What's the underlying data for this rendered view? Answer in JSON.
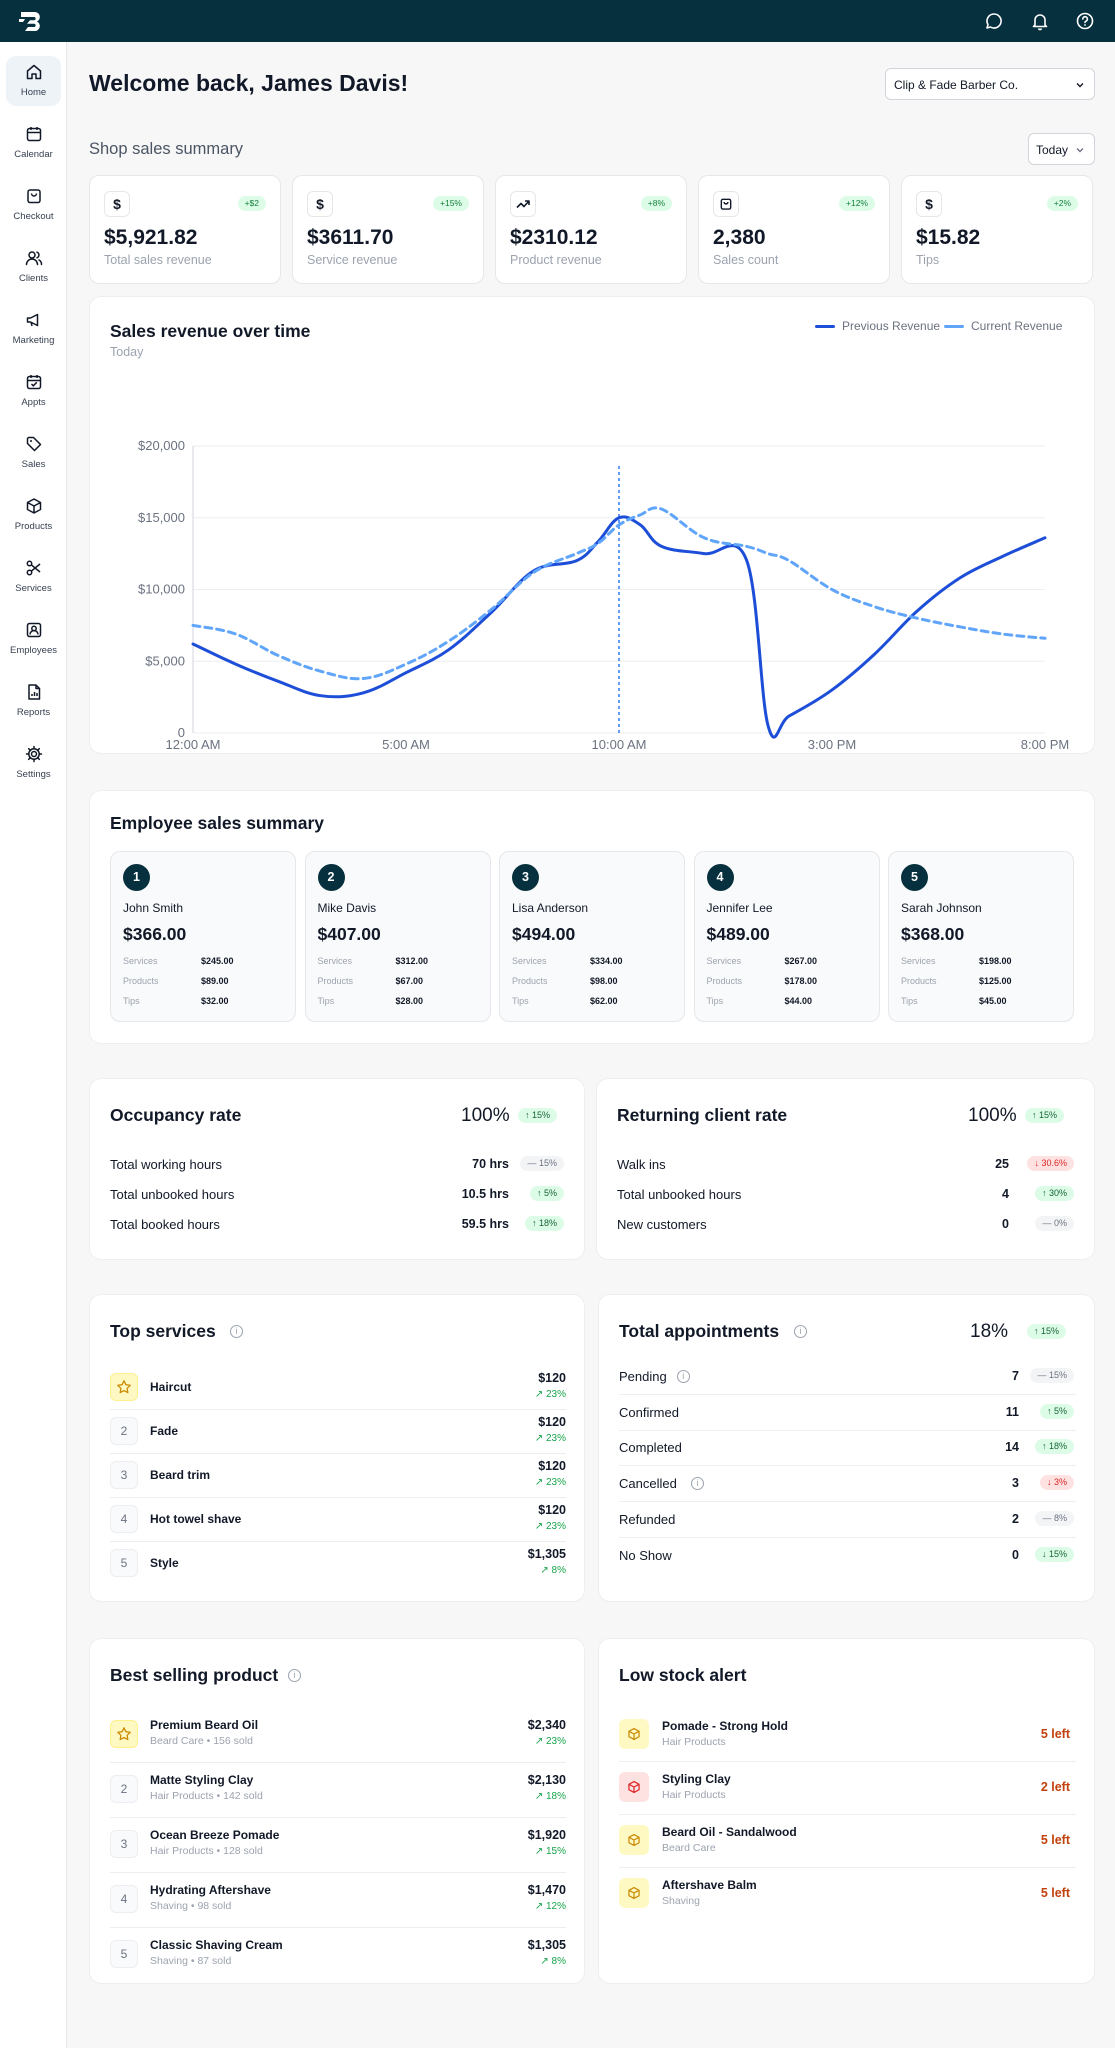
{
  "header": {
    "logo_icon": "brand-logo",
    "icons": [
      "chat-icon",
      "bell-icon",
      "help-icon"
    ]
  },
  "sidebar": {
    "items": [
      {
        "label": "Home",
        "icon": "home-icon",
        "active": true
      },
      {
        "label": "Calendar",
        "icon": "calendar-icon"
      },
      {
        "label": "Checkout",
        "icon": "shopping-bag-icon"
      },
      {
        "label": "Clients",
        "icon": "users-icon"
      },
      {
        "label": "Marketing",
        "icon": "megaphone-icon"
      },
      {
        "label": "Appts",
        "icon": "calendar-check-icon"
      },
      {
        "label": "Sales",
        "icon": "tag-icon"
      },
      {
        "label": "Products",
        "icon": "box-icon"
      },
      {
        "label": "Services",
        "icon": "scissors-icon"
      },
      {
        "label": "Employees",
        "icon": "id-badge-icon"
      },
      {
        "label": "Reports",
        "icon": "report-icon"
      },
      {
        "label": "Settings",
        "icon": "gear-icon"
      }
    ]
  },
  "welcome": "Welcome back, James Davis!",
  "shop_select": "Clip & Fade Barber Co.",
  "summary": {
    "title": "Shop sales summary",
    "period": "Today",
    "kpis": [
      {
        "icon": "$",
        "badge": "+$2",
        "value": "$5,921.82",
        "label": "Total sales revenue"
      },
      {
        "icon": "$",
        "badge": "+15%",
        "value": "$3611.70",
        "label": "Service revenue"
      },
      {
        "icon": "trend",
        "badge": "+8%",
        "value": "$2310.12",
        "label": "Product revenue"
      },
      {
        "icon": "bag",
        "badge": "+12%",
        "value": "2,380",
        "label": "Sales count"
      },
      {
        "icon": "$",
        "badge": "+2%",
        "value": "$15.82",
        "label": "Tips"
      }
    ]
  },
  "revenue_chart": {
    "title": "Sales revenue over time",
    "subtitle": "Today",
    "legend": [
      "Previous Revenue",
      "Current Revenue"
    ]
  },
  "chart_data": {
    "type": "line",
    "ylim": [
      0,
      20000
    ],
    "yticks": [
      "0",
      "$5,000",
      "$10,000",
      "$15,000",
      "$20,000"
    ],
    "xticks": [
      "12:00 AM",
      "5:00 AM",
      "10:00 AM",
      "3:00 PM",
      "8:00 PM"
    ],
    "x_hours": [
      0,
      1,
      2,
      3,
      4,
      5,
      6,
      7,
      8,
      9,
      9.5,
      10,
      10.5,
      11,
      12,
      13,
      13.5,
      14,
      15,
      16,
      17,
      18,
      19,
      20
    ],
    "series": [
      {
        "name": "Previous Revenue",
        "style": "solid",
        "color": "#1d4ed8",
        "values": [
          6200,
          4800,
          3600,
          2600,
          2800,
          4200,
          5800,
          8400,
          11300,
          12000,
          13300,
          15000,
          14500,
          13000,
          12500,
          12000,
          500,
          1200,
          3000,
          5500,
          8500,
          10800,
          12300,
          13600
        ]
      },
      {
        "name": "Current Revenue",
        "style": "dashed",
        "color": "#60a5fa",
        "values": [
          7500,
          6900,
          5400,
          4300,
          3800,
          4800,
          6400,
          8600,
          11200,
          12500,
          13200,
          14500,
          15200,
          15600,
          13600,
          13000,
          12500,
          12000,
          10000,
          8800,
          8000,
          7400,
          6900,
          6600
        ]
      }
    ],
    "marker_x_hour": 10,
    "colors": {
      "solid": "#1d4ed8",
      "dashed": "#60a5fa",
      "marker": "#3b82f6"
    }
  },
  "employees": {
    "title": "Employee sales summary",
    "labels": {
      "services": "Services",
      "products": "Products",
      "tips": "Tips"
    },
    "items": [
      {
        "rank": "1",
        "name": "John Smith",
        "total": "$366.00",
        "services": "$245.00",
        "products": "$89.00",
        "tips": "$32.00"
      },
      {
        "rank": "2",
        "name": "Mike Davis",
        "total": "$407.00",
        "services": "$312.00",
        "products": "$67.00",
        "tips": "$28.00"
      },
      {
        "rank": "3",
        "name": "Lisa Anderson",
        "total": "$494.00",
        "services": "$334.00",
        "products": "$98.00",
        "tips": "$62.00"
      },
      {
        "rank": "4",
        "name": "Jennifer Lee",
        "total": "$489.00",
        "services": "$267.00",
        "products": "$178.00",
        "tips": "$44.00"
      },
      {
        "rank": "5",
        "name": "Sarah Johnson",
        "total": "$368.00",
        "services": "$198.00",
        "products": "$125.00",
        "tips": "$45.00"
      }
    ]
  },
  "occupancy": {
    "title": "Occupancy rate",
    "value": "100%",
    "badge": "↑ 15%",
    "rows": [
      {
        "label": "Total working hours",
        "value": "70 hrs",
        "badge": "— 15%",
        "tone": "flat"
      },
      {
        "label": "Total unbooked hours",
        "value": "10.5 hrs",
        "badge": "↑ 5%",
        "tone": "up"
      },
      {
        "label": "Total booked hours",
        "value": "59.5 hrs",
        "badge": "↑ 18%",
        "tone": "up"
      }
    ]
  },
  "returning": {
    "title": "Returning client rate",
    "value": "100%",
    "badge": "↑ 15%",
    "rows": [
      {
        "label": "Walk ins",
        "value": "25",
        "badge": "↓ 30.6%",
        "tone": "down"
      },
      {
        "label": "Total unbooked hours",
        "value": "4",
        "badge": "↑ 30%",
        "tone": "up"
      },
      {
        "label": "New customers",
        "value": "0",
        "badge": "— 0%",
        "tone": "flat"
      }
    ]
  },
  "top_services": {
    "title": "Top services",
    "items": [
      {
        "rank": "★",
        "name": "Haircut",
        "price": "$120",
        "trend": "↗ 23%"
      },
      {
        "rank": "2",
        "name": "Fade",
        "price": "$120",
        "trend": "↗ 23%"
      },
      {
        "rank": "3",
        "name": "Beard trim",
        "price": "$120",
        "trend": "↗ 23%"
      },
      {
        "rank": "4",
        "name": "Hot towel shave",
        "price": "$120",
        "trend": "↗ 23%"
      },
      {
        "rank": "5",
        "name": "Style",
        "price": "$1,305",
        "trend": "↗ 8%"
      }
    ]
  },
  "appointments": {
    "title": "Total appointments",
    "value": "18%",
    "badge": "↑ 15%",
    "rows": [
      {
        "label": "Pending",
        "value": "7",
        "badge": "— 15%",
        "tone": "flat",
        "info": true
      },
      {
        "label": "Confirmed",
        "value": "11",
        "badge": "↑ 5%",
        "tone": "up"
      },
      {
        "label": "Completed",
        "value": "14",
        "badge": "↑ 18%",
        "tone": "up"
      },
      {
        "label": "Cancelled",
        "value": "3",
        "badge": "↓ 3%",
        "tone": "down",
        "info": true
      },
      {
        "label": "Refunded",
        "value": "2",
        "badge": "— 8%",
        "tone": "flat"
      },
      {
        "label": "No Show",
        "value": "0",
        "badge": "↓ 15%",
        "tone": "up"
      }
    ]
  },
  "best_products": {
    "title": "Best selling product",
    "items": [
      {
        "rank": "★",
        "name": "Premium Beard Oil",
        "sub": "Beard Care • 156 sold",
        "price": "$2,340",
        "trend": "↗ 23%"
      },
      {
        "rank": "2",
        "name": "Matte Styling Clay",
        "sub": "Hair Products • 142 sold",
        "price": "$2,130",
        "trend": "↗ 18%"
      },
      {
        "rank": "3",
        "name": "Ocean Breeze Pomade",
        "sub": "Hair Products • 128 sold",
        "price": "$1,920",
        "trend": "↗ 15%"
      },
      {
        "rank": "4",
        "name": "Hydrating Aftershave",
        "sub": "Shaving • 98 sold",
        "price": "$1,470",
        "trend": "↗ 12%"
      },
      {
        "rank": "5",
        "name": "Classic Shaving Cream",
        "sub": "Shaving • 87 sold",
        "price": "$1,305",
        "trend": "↗ 8%"
      }
    ]
  },
  "low_stock": {
    "title": "Low stock alert",
    "items": [
      {
        "name": "Pomade - Strong Hold",
        "sub": "Hair Products",
        "left": "5 left",
        "tone": "yellow"
      },
      {
        "name": "Styling Clay",
        "sub": "Hair Products",
        "left": "2 left",
        "tone": "red"
      },
      {
        "name": "Beard Oil - Sandalwood",
        "sub": "Beard Care",
        "left": "5 left",
        "tone": "yellow"
      },
      {
        "name": "Aftershave Balm",
        "sub": "Shaving",
        "left": "5 left",
        "tone": "yellow"
      }
    ]
  }
}
